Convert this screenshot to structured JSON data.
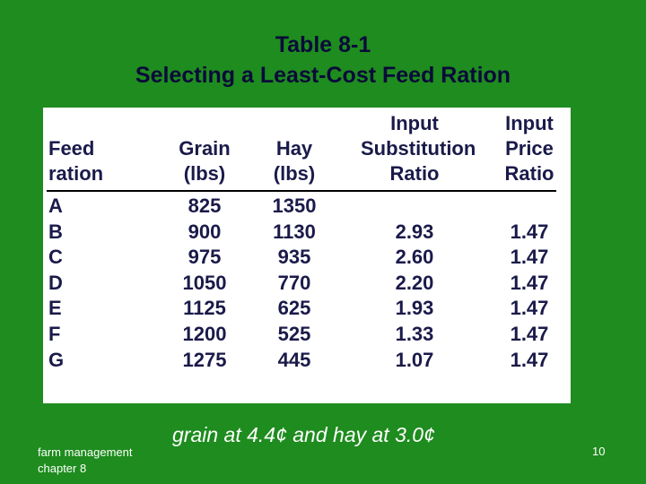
{
  "title": [
    "Table 8-1",
    "Selecting a Least-Cost Feed Ration"
  ],
  "table": {
    "header": [
      [
        "Feed",
        "ration"
      ],
      [
        "Grain",
        "(lbs)"
      ],
      [
        "Hay",
        "(lbs)"
      ],
      [
        "Input",
        "Substitution",
        "Ratio"
      ],
      [
        "Input",
        "Price",
        "Ratio"
      ]
    ],
    "rows": [
      [
        "A",
        "825",
        "1350"
      ],
      [
        "B",
        "900",
        "1130",
        "2.93",
        "1.47"
      ],
      [
        "C",
        "975",
        "935",
        "2.60",
        "1.47"
      ],
      [
        "D",
        "1050",
        "770",
        "2.20",
        "1.47"
      ],
      [
        "E",
        "1125",
        "625",
        "1.93",
        "1.47"
      ],
      [
        "F",
        "1200",
        "525",
        "1.33",
        "1.47"
      ],
      [
        "G",
        "1275",
        "445",
        "1.07",
        "1.47"
      ]
    ]
  },
  "footer": {
    "course": [
      "farm management",
      "chapter 8"
    ],
    "note": "grain at 4.4¢ and hay at 3.0¢",
    "page": "10"
  }
}
